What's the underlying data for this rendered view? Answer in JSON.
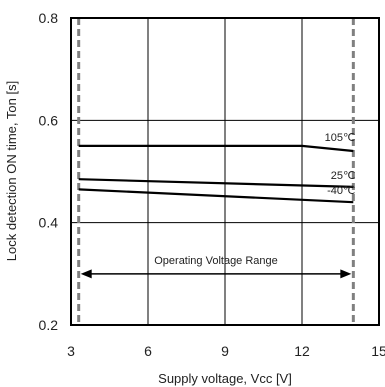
{
  "chart_data": {
    "type": "line",
    "xlabel": "Supply voltage, Vcc [V]",
    "ylabel": "Lock detection ON time, Ton [s]",
    "xlim": [
      3,
      15
    ],
    "ylim": [
      0.2,
      0.8
    ],
    "x_ticks": [
      "3",
      "6",
      "9",
      "12",
      "15"
    ],
    "y_ticks": [
      "0.2",
      "0.4",
      "0.6",
      "0.8"
    ],
    "grid": true,
    "legend": "none",
    "series": [
      {
        "name": "105℃",
        "x": [
          3.3,
          12,
          14
        ],
        "y": [
          0.55,
          0.55,
          0.54
        ]
      },
      {
        "name": "25℃",
        "x": [
          3.3,
          14
        ],
        "y": [
          0.485,
          0.47
        ]
      },
      {
        "name": "-40℃",
        "x": [
          3.3,
          14
        ],
        "y": [
          0.465,
          0.44
        ]
      }
    ],
    "operating_range": {
      "label": "Operating Voltage Range",
      "x_min": 3.3,
      "x_max": 14,
      "y": 0.3
    }
  },
  "colors": {
    "line": "#000000",
    "grid": "#000000",
    "frame": "#000000",
    "range_boundary": "#808080",
    "background": "#ffffff"
  }
}
